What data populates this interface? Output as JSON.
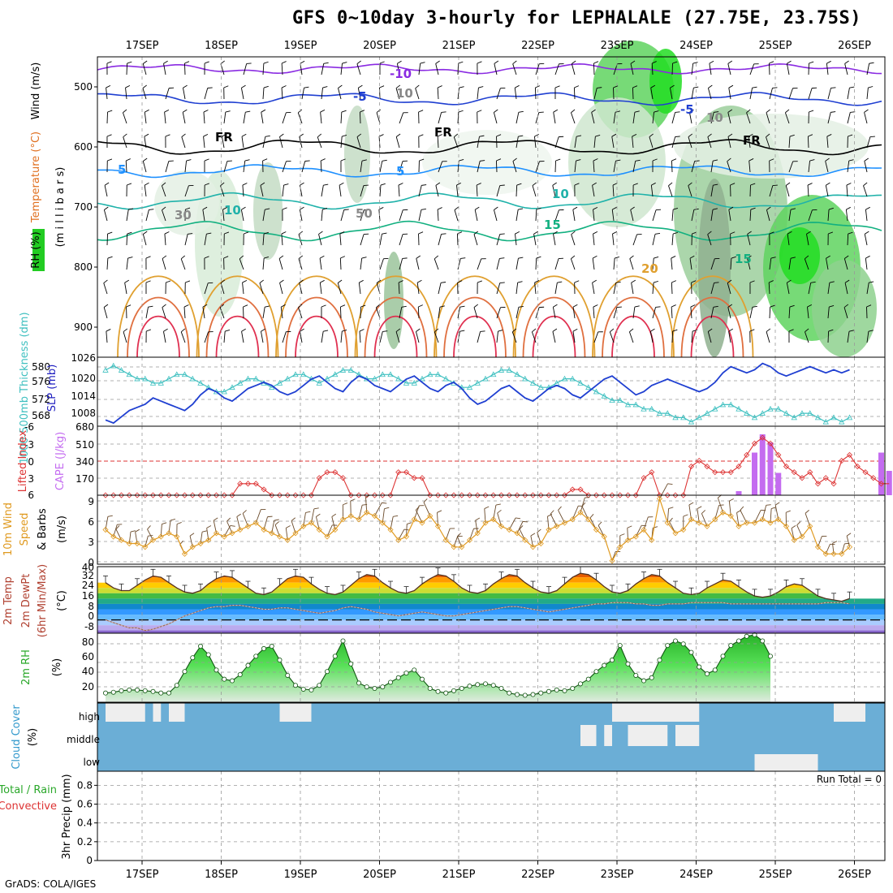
{
  "header": {
    "title": "GFS 0~10day 3-hourly for LEPHALALE (27.75E, 23.75S)",
    "footer": "GrADS: COLA/IGES"
  },
  "date_axis": [
    "17SEP",
    "18SEP",
    "19SEP",
    "20SEP",
    "21SEP",
    "22SEP",
    "23SEP",
    "24SEP",
    "25SEP",
    "26SEP"
  ],
  "colors": {
    "temp_contour": "#e08a00",
    "freezing": "#000000",
    "rh_fill": "#33cc33",
    "slp": "#1f3fd1",
    "thickness": "#3fc0c0",
    "lifted_index": "#dd3333",
    "cape": "#c46cf0",
    "wind": "#e09a20",
    "rh2m": "#2aa82a",
    "cloud_bg": "#6baed6",
    "cloud_fill": "#eeeeee"
  },
  "panels": {
    "upper": {
      "ylabel_parts": [
        "RH (%)",
        "Temperature (°C)",
        "Wind (m/s)"
      ],
      "ylabel_units": "(m i l l i b a r s)",
      "yticks": [
        "500",
        "600",
        "700",
        "800",
        "900"
      ],
      "contour_labels": [
        "-10",
        "-5",
        "-5",
        "5",
        "5",
        "10",
        "10",
        "15",
        "15",
        "20",
        "FR",
        "FR",
        "FR",
        "30",
        "50",
        "10",
        "10"
      ]
    },
    "slp": {
      "ylabel_left": "1000-500mb Thickness (dm)",
      "ylabel_right": "SLP (mb)",
      "left_ticks": [
        "580",
        "576",
        "572",
        "568"
      ],
      "right_ticks": [
        "1026",
        "1020",
        "1014",
        "1008"
      ]
    },
    "li": {
      "ylabel_left": "Lifted Index",
      "ylabel_right": "CAPE (J/kg)",
      "left_ticks": [
        "-6",
        "-3",
        "0",
        "3",
        "6"
      ],
      "right_ticks": [
        "680",
        "510",
        "340",
        "170"
      ]
    },
    "wind10": {
      "ylabel_a": "10m Wind",
      "ylabel_b": "Speed",
      "ylabel_c": "& Barbs",
      "ylabel_units": "(m/s)",
      "ticks": [
        "9",
        "6",
        "3",
        "0"
      ]
    },
    "temp2m": {
      "ylabel_a": "2m Temp",
      "ylabel_b": "2m DewPt",
      "ylabel_c": "(6hr Min/Max)",
      "ylabel_units": "(°C)",
      "ticks": [
        "40",
        "32",
        "24",
        "16",
        "8",
        "0",
        "-8"
      ]
    },
    "rh2m": {
      "ylabel": "2m RH",
      "ylabel_units": "(%)",
      "ticks": [
        "80",
        "60",
        "40",
        "20"
      ]
    },
    "cloud": {
      "ylabel": "Cloud Cover",
      "ylabel_units": "(%)",
      "levels": [
        "high",
        "middle",
        "low"
      ]
    },
    "precip": {
      "ylabel_a": "Total / Rain",
      "ylabel_b": "Convective",
      "ylabel_c": "3hr Precip (mm)",
      "ticks": [
        "0.8",
        "0.6",
        "0.4",
        "0.2",
        "0"
      ],
      "run_total": "Run Total = 0"
    }
  },
  "chart_data": [
    {
      "type": "line",
      "title": "SLP (mb)",
      "x_unit": "3-hourly steps from 16SEP 15Z",
      "ylim": [
        1005,
        1027
      ],
      "values": [
        1007,
        1006,
        1008,
        1010,
        1011,
        1012,
        1014,
        1013,
        1012,
        1011,
        1010,
        1012,
        1015,
        1017,
        1016,
        1014,
        1013,
        1015,
        1017,
        1018,
        1019,
        1018,
        1016,
        1015,
        1016,
        1018,
        1020,
        1021,
        1019,
        1017,
        1016,
        1019,
        1021,
        1020,
        1018,
        1017,
        1016,
        1018,
        1020,
        1021,
        1019,
        1017,
        1016,
        1018,
        1019,
        1017,
        1014,
        1012,
        1013,
        1015,
        1017,
        1018,
        1016,
        1014,
        1013,
        1015,
        1017,
        1018,
        1017,
        1015,
        1014,
        1016,
        1018,
        1020,
        1021,
        1019,
        1017,
        1015,
        1016,
        1018,
        1019,
        1020,
        1019,
        1018,
        1017,
        1016,
        1017,
        1019,
        1022,
        1024,
        1023,
        1022,
        1023,
        1025,
        1024,
        1022,
        1021,
        1022,
        1023,
        1024,
        1023,
        1022,
        1023,
        1022,
        1023
      ]
    },
    {
      "type": "line",
      "title": "1000-500mb Thickness (dm)",
      "ylim": [
        566,
        582
      ],
      "values": [
        579,
        580,
        579,
        578,
        577,
        577,
        576,
        576,
        577,
        578,
        578,
        577,
        576,
        575,
        574,
        574,
        575,
        576,
        577,
        577,
        576,
        575,
        576,
        577,
        578,
        578,
        577,
        576,
        577,
        578,
        579,
        579,
        578,
        577,
        577,
        578,
        578,
        577,
        576,
        576,
        577,
        578,
        578,
        577,
        576,
        575,
        575,
        576,
        577,
        578,
        579,
        579,
        578,
        577,
        576,
        575,
        575,
        576,
        577,
        577,
        576,
        575,
        574,
        573,
        572,
        572,
        571,
        571,
        570,
        570,
        569,
        569,
        568,
        568,
        567,
        568,
        569,
        570,
        571,
        571,
        570,
        569,
        568,
        569,
        570,
        570,
        569,
        568,
        569,
        569,
        568,
        567,
        568,
        567,
        568
      ]
    },
    {
      "type": "line",
      "title": "Lifted Index",
      "ylim": [
        6,
        -6
      ],
      "values": [
        6,
        6,
        6,
        6,
        6,
        6,
        6,
        6,
        6,
        6,
        6,
        6,
        6,
        6,
        6,
        6,
        6,
        4,
        4,
        4,
        5,
        6,
        6,
        6,
        6,
        6,
        6,
        3,
        2,
        2,
        3,
        6,
        6,
        6,
        6,
        6,
        6,
        2,
        2,
        3,
        3,
        6,
        6,
        6,
        6,
        6,
        6,
        6,
        6,
        6,
        6,
        6,
        6,
        6,
        6,
        6,
        6,
        6,
        6,
        5,
        5,
        6,
        6,
        6,
        6,
        6,
        6,
        6,
        3,
        2,
        6,
        6,
        6,
        6,
        1,
        0,
        1,
        2,
        2,
        2,
        1,
        -1,
        -3,
        -4,
        -3,
        -1,
        1,
        2,
        3,
        2,
        4,
        3,
        4,
        0,
        -1,
        1,
        2,
        3,
        4,
        4
      ]
    },
    {
      "type": "bar",
      "title": "CAPE (J/kg)",
      "ylim": [
        0,
        680
      ],
      "bars": [
        {
          "step": 80,
          "value": 40
        },
        {
          "step": 82,
          "value": 420
        },
        {
          "step": 83,
          "value": 600
        },
        {
          "step": 84,
          "value": 520
        },
        {
          "step": 85,
          "value": 220
        },
        {
          "step": 98,
          "value": 420
        },
        {
          "step": 99,
          "value": 240
        }
      ]
    },
    {
      "type": "line",
      "title": "10m Wind Speed (m/s)",
      "ylim": [
        -0.5,
        9.5
      ],
      "values": [
        4.5,
        3.5,
        3,
        2.5,
        2.5,
        2,
        3,
        3.5,
        4,
        3.5,
        1,
        2,
        2.5,
        3,
        4,
        3.5,
        4,
        4.5,
        5,
        5.5,
        4.5,
        4,
        3.5,
        3,
        4,
        5,
        5.5,
        4.5,
        3.5,
        4.5,
        6,
        6.5,
        6,
        7,
        6.5,
        5.5,
        4.5,
        3,
        3.5,
        6,
        5.5,
        6.5,
        5,
        3,
        2,
        2,
        3,
        4,
        5.5,
        6,
        5,
        4.5,
        4,
        3,
        2,
        2.5,
        4.5,
        5,
        5.5,
        6,
        7,
        6,
        4.5,
        3.5,
        0,
        2,
        3,
        3.5,
        4.5,
        3,
        9,
        5.5,
        4,
        4.5,
        6,
        5.5,
        5,
        6,
        7,
        6.5,
        5,
        5.5,
        5.5,
        6,
        5.5,
        6,
        5,
        3,
        3.5,
        5,
        2,
        1,
        1,
        1,
        2
      ]
    },
    {
      "type": "area",
      "title": "2m Temp (°C)",
      "ylim": [
        -10,
        40
      ],
      "values": [
        28,
        24,
        22,
        22,
        26,
        30,
        33,
        32,
        28,
        24,
        21,
        20,
        22,
        27,
        31,
        33,
        32,
        28,
        24,
        20,
        19,
        21,
        26,
        31,
        33,
        32,
        27,
        23,
        20,
        19,
        21,
        26,
        31,
        34,
        33,
        28,
        24,
        21,
        20,
        22,
        27,
        31,
        34,
        33,
        29,
        24,
        21,
        20,
        22,
        27,
        31,
        34,
        33,
        28,
        24,
        21,
        20,
        22,
        27,
        32,
        35,
        34,
        30,
        25,
        21,
        20,
        22,
        27,
        31,
        34,
        33,
        28,
        24,
        20,
        19,
        20,
        24,
        27,
        30,
        29,
        25,
        21,
        18,
        17,
        18,
        21,
        25,
        27,
        26,
        22,
        18,
        16,
        15,
        14,
        16
      ]
    },
    {
      "type": "line",
      "title": "2m DewPt (°C)",
      "ylim": [
        -10,
        40
      ],
      "values": [
        0,
        -2,
        -4,
        -6,
        -6,
        -8,
        -7,
        -5,
        -3,
        0,
        3,
        5,
        7,
        9,
        10,
        10,
        11,
        11,
        10,
        9,
        8,
        8,
        9,
        9,
        8,
        7,
        6,
        5,
        6,
        7,
        9,
        10,
        9,
        8,
        6,
        5,
        4,
        3,
        4,
        5,
        6,
        5,
        4,
        3,
        3,
        4,
        5,
        6,
        7,
        8,
        9,
        10,
        10,
        9,
        8,
        7,
        6,
        7,
        8,
        9,
        10,
        11,
        12,
        12,
        13,
        13,
        13,
        12,
        12,
        11,
        11,
        12,
        12,
        12,
        13,
        13,
        13,
        13,
        13,
        12,
        12,
        12,
        12,
        12,
        12,
        12,
        12,
        12,
        12,
        12,
        12,
        13,
        13,
        13,
        12
      ]
    },
    {
      "type": "area",
      "title": "2m RH (%)",
      "ylim": [
        0,
        90
      ],
      "values": [
        12,
        13,
        15,
        16,
        16,
        15,
        14,
        12,
        12,
        22,
        40,
        58,
        73,
        62,
        42,
        30,
        28,
        36,
        48,
        60,
        70,
        73,
        55,
        35,
        22,
        17,
        16,
        22,
        40,
        60,
        80,
        50,
        25,
        20,
        18,
        20,
        26,
        32,
        38,
        42,
        30,
        18,
        14,
        12,
        15,
        18,
        21,
        23,
        24,
        22,
        18,
        12,
        10,
        9,
        10,
        12,
        14,
        16,
        15,
        18,
        24,
        30,
        40,
        48,
        55,
        74,
        50,
        35,
        28,
        32,
        55,
        74,
        80,
        76,
        65,
        46,
        37,
        42,
        60,
        74,
        80,
        86,
        88,
        80,
        60
      ]
    },
    {
      "type": "table",
      "title": "Cloud Cover (%)",
      "rows": [
        "high",
        "middle",
        "low"
      ],
      "high_blocks": [
        [
          0,
          5
        ],
        [
          6,
          7
        ],
        [
          8,
          10
        ],
        [
          22,
          26
        ],
        [
          64,
          75
        ],
        [
          92,
          96
        ]
      ],
      "middle_blocks": [
        [
          60,
          62
        ],
        [
          63,
          64
        ],
        [
          66,
          71
        ],
        [
          72,
          75
        ]
      ],
      "low_blocks": [
        [
          82,
          90
        ]
      ]
    },
    {
      "type": "line",
      "title": "3hr Precip (mm)",
      "ylim": [
        0,
        0.95
      ],
      "values": []
    }
  ]
}
